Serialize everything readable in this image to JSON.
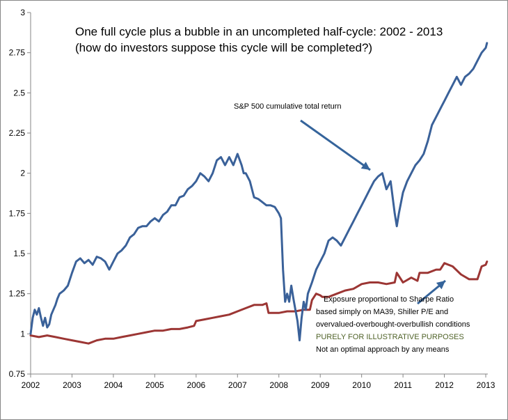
{
  "chart_data": {
    "type": "line",
    "title": "One full cycle plus a bubble in an uncompleted half-cycle: 2002 - 2013",
    "subtitle": "(how do investors suppose this cycle will be completed?)",
    "xlabel": "",
    "ylabel": "",
    "xlim": [
      2002,
      2013.05
    ],
    "ylim": [
      0.75,
      3
    ],
    "x_ticks": [
      "2002",
      "2003",
      "2004",
      "2005",
      "2006",
      "2007",
      "2008",
      "2009",
      "2010",
      "2011",
      "2012",
      "2013"
    ],
    "y_ticks": [
      "0.75",
      "1",
      "1.25",
      "1.5",
      "1.75",
      "2",
      "2.25",
      "2.5",
      "2.75",
      "3"
    ],
    "grid": false,
    "legend": "none",
    "colors": {
      "sp500": "#3a6199",
      "strategy": "#9c3634",
      "arrow": "#35649b"
    },
    "series": [
      {
        "key": "sp500",
        "x": [
          2002.0,
          2002.05,
          2002.1,
          2002.15,
          2002.2,
          2002.25,
          2002.3,
          2002.35,
          2002.4,
          2002.45,
          2002.5,
          2002.55,
          2002.6,
          2002.65,
          2002.7,
          2002.75,
          2002.8,
          2002.9,
          2003.0,
          2003.1,
          2003.2,
          2003.3,
          2003.4,
          2003.5,
          2003.6,
          2003.7,
          2003.8,
          2003.9,
          2004.0,
          2004.1,
          2004.2,
          2004.3,
          2004.4,
          2004.5,
          2004.6,
          2004.7,
          2004.8,
          2004.9,
          2005.0,
          2005.1,
          2005.2,
          2005.3,
          2005.4,
          2005.5,
          2005.6,
          2005.7,
          2005.8,
          2005.9,
          2006.0,
          2006.1,
          2006.2,
          2006.3,
          2006.4,
          2006.5,
          2006.6,
          2006.7,
          2006.8,
          2006.9,
          2007.0,
          2007.1,
          2007.15,
          2007.2,
          2007.3,
          2007.4,
          2007.5,
          2007.6,
          2007.7,
          2007.8,
          2007.9,
          2008.0,
          2008.05,
          2008.1,
          2008.15,
          2008.2,
          2008.25,
          2008.3,
          2008.35,
          2008.4,
          2008.45,
          2008.5,
          2008.55,
          2008.6,
          2008.65,
          2008.7,
          2008.8,
          2008.9,
          2009.0,
          2009.1,
          2009.2,
          2009.3,
          2009.4,
          2009.5,
          2009.6,
          2009.7,
          2009.8,
          2009.9,
          2010.0,
          2010.1,
          2010.2,
          2010.3,
          2010.4,
          2010.5,
          2010.6,
          2010.7,
          2010.8,
          2010.85,
          2010.9,
          2011.0,
          2011.1,
          2011.2,
          2011.3,
          2011.4,
          2011.5,
          2011.6,
          2011.7,
          2011.8,
          2011.9,
          2012.0,
          2012.1,
          2012.2,
          2012.3,
          2012.4,
          2012.5,
          2012.6,
          2012.7,
          2012.8,
          2012.9,
          2013.0,
          2013.03
        ],
        "values": [
          1.0,
          1.1,
          1.15,
          1.12,
          1.16,
          1.1,
          1.05,
          1.1,
          1.04,
          1.06,
          1.12,
          1.15,
          1.18,
          1.22,
          1.25,
          1.26,
          1.27,
          1.3,
          1.38,
          1.45,
          1.47,
          1.44,
          1.46,
          1.43,
          1.48,
          1.47,
          1.45,
          1.4,
          1.45,
          1.5,
          1.52,
          1.55,
          1.6,
          1.62,
          1.66,
          1.67,
          1.67,
          1.7,
          1.72,
          1.7,
          1.74,
          1.76,
          1.8,
          1.8,
          1.85,
          1.86,
          1.9,
          1.92,
          1.95,
          2.0,
          1.98,
          1.95,
          2.0,
          2.08,
          2.1,
          2.05,
          2.1,
          2.05,
          2.12,
          2.05,
          2.0,
          2.0,
          1.95,
          1.85,
          1.84,
          1.82,
          1.8,
          1.8,
          1.79,
          1.75,
          1.72,
          1.4,
          1.2,
          1.25,
          1.2,
          1.3,
          1.22,
          1.15,
          1.08,
          0.96,
          1.1,
          1.2,
          1.15,
          1.25,
          1.32,
          1.4,
          1.45,
          1.5,
          1.58,
          1.6,
          1.58,
          1.55,
          1.6,
          1.65,
          1.7,
          1.75,
          1.8,
          1.85,
          1.9,
          1.95,
          1.98,
          2.0,
          1.9,
          1.95,
          1.75,
          1.67,
          1.75,
          1.88,
          1.95,
          2.0,
          2.05,
          2.08,
          2.12,
          2.2,
          2.3,
          2.35,
          2.4,
          2.45,
          2.5,
          2.55,
          2.6,
          2.55,
          2.6,
          2.62,
          2.65,
          2.7,
          2.75,
          2.78,
          2.81
        ]
      },
      {
        "key": "strategy",
        "x": [
          2002.0,
          2002.2,
          2002.4,
          2002.6,
          2002.8,
          2003.0,
          2003.2,
          2003.4,
          2003.6,
          2003.8,
          2004.0,
          2004.2,
          2004.4,
          2004.6,
          2004.8,
          2005.0,
          2005.2,
          2005.4,
          2005.6,
          2005.8,
          2005.95,
          2006.0,
          2006.2,
          2006.4,
          2006.6,
          2006.8,
          2007.0,
          2007.2,
          2007.4,
          2007.6,
          2007.7,
          2007.75,
          2008.0,
          2008.2,
          2008.4,
          2008.6,
          2008.75,
          2008.8,
          2008.9,
          2009.0,
          2009.05,
          2009.1,
          2009.2,
          2009.4,
          2009.6,
          2009.8,
          2010.0,
          2010.2,
          2010.4,
          2010.6,
          2010.8,
          2010.85,
          2011.0,
          2011.2,
          2011.35,
          2011.4,
          2011.6,
          2011.8,
          2011.9,
          2012.0,
          2012.2,
          2012.4,
          2012.6,
          2012.8,
          2012.9,
          2013.0,
          2013.03
        ],
        "values": [
          0.99,
          0.98,
          0.99,
          0.98,
          0.97,
          0.96,
          0.95,
          0.94,
          0.96,
          0.97,
          0.97,
          0.98,
          0.99,
          1.0,
          1.01,
          1.02,
          1.02,
          1.03,
          1.03,
          1.04,
          1.05,
          1.08,
          1.09,
          1.1,
          1.11,
          1.12,
          1.14,
          1.16,
          1.18,
          1.18,
          1.19,
          1.13,
          1.13,
          1.14,
          1.14,
          1.15,
          1.15,
          1.21,
          1.25,
          1.24,
          1.23,
          1.23,
          1.23,
          1.25,
          1.27,
          1.28,
          1.31,
          1.32,
          1.32,
          1.31,
          1.32,
          1.38,
          1.32,
          1.35,
          1.33,
          1.38,
          1.38,
          1.4,
          1.4,
          1.44,
          1.42,
          1.37,
          1.34,
          1.34,
          1.42,
          1.43,
          1.45
        ]
      }
    ],
    "annotations": [
      {
        "key": "sp500_label",
        "text": "S&P 500 cumulative  total return"
      },
      {
        "key": "strat_line1",
        "text": "Exposure proportional to Sharpe Ratio"
      },
      {
        "key": "strat_line2",
        "text": "based simply on MA39, Shiller P/E and"
      },
      {
        "key": "strat_line3",
        "text": "overvalued-overbought-overbullish  conditions"
      },
      {
        "key": "strat_line4",
        "text": "PURELY FOR ILLUSTRATIVE  PURPOSES"
      },
      {
        "key": "strat_line5",
        "text": "Not an optimal approach by any means"
      }
    ]
  }
}
